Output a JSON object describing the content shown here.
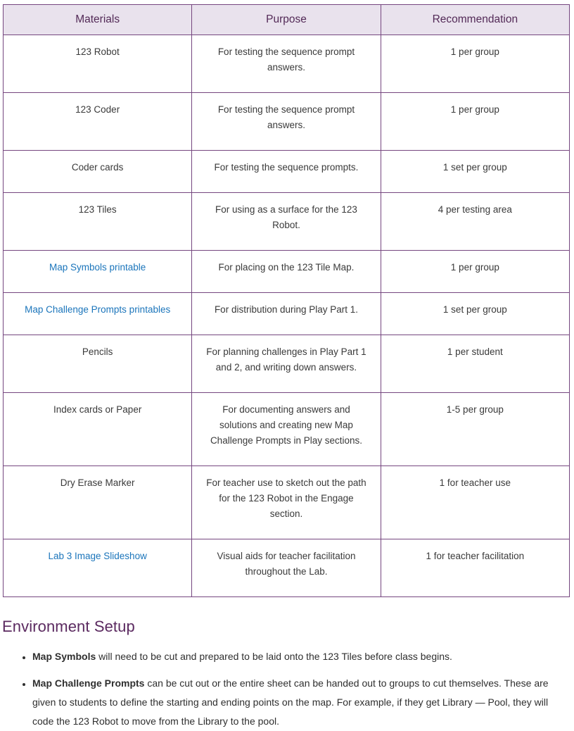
{
  "colors": {
    "border": "#75467f",
    "header_bg": "#e9e2ed",
    "header_text": "#532a57",
    "body_text": "#3a3a3a",
    "link": "#1b75bb",
    "heading": "#5b2a60"
  },
  "table": {
    "headers": [
      "Materials",
      "Purpose",
      "Recommendation"
    ],
    "rows": [
      {
        "material": "123 Robot",
        "is_link": false,
        "purpose": "For testing the sequence prompt answers.",
        "recommendation": "1 per group"
      },
      {
        "material": "123 Coder",
        "is_link": false,
        "purpose": "For testing the sequence prompt answers.",
        "recommendation": "1 per group"
      },
      {
        "material": "Coder cards",
        "is_link": false,
        "purpose": "For testing the sequence prompts.",
        "recommendation": "1 set per group"
      },
      {
        "material": "123 Tiles",
        "is_link": false,
        "purpose": "For using as a surface for the 123 Robot.",
        "recommendation": "4 per testing area"
      },
      {
        "material": "Map Symbols printable",
        "is_link": true,
        "purpose": "For placing on the 123 Tile Map.",
        "recommendation": "1 per group"
      },
      {
        "material": "Map Challenge Prompts printables",
        "is_link": true,
        "purpose": "For distribution during Play Part 1.",
        "recommendation": "1 set per group"
      },
      {
        "material": "Pencils",
        "is_link": false,
        "purpose": "For planning challenges in Play Part 1 and 2, and writing down answers.",
        "recommendation": "1 per student"
      },
      {
        "material": "Index cards or Paper",
        "is_link": false,
        "purpose": "For documenting answers and solutions and creating new Map Challenge Prompts in Play sections.",
        "recommendation": "1-5 per group"
      },
      {
        "material": "Dry Erase Marker",
        "is_link": false,
        "purpose": "For teacher use to sketch out the path for the 123 Robot in the Engage section.",
        "recommendation": "1 for teacher use"
      },
      {
        "material": "Lab 3 Image Slideshow",
        "is_link": true,
        "purpose": "Visual aids for teacher facilitation throughout the Lab.",
        "recommendation": "1 for teacher facilitation"
      }
    ]
  },
  "environment_setup": {
    "heading": "Environment Setup",
    "bullets": [
      {
        "bold": "Map Symbols",
        "text": " will need to be cut and prepared to be laid onto the 123 Tiles before class begins."
      },
      {
        "bold": "Map Challenge Prompts",
        "text": " can be cut out or the entire sheet can be handed out to groups to cut themselves. These are given to students to define the starting and ending points on the map. For example, if they get Library — Pool, they will code the 123 Robot to move from the Library to the pool."
      }
    ]
  }
}
